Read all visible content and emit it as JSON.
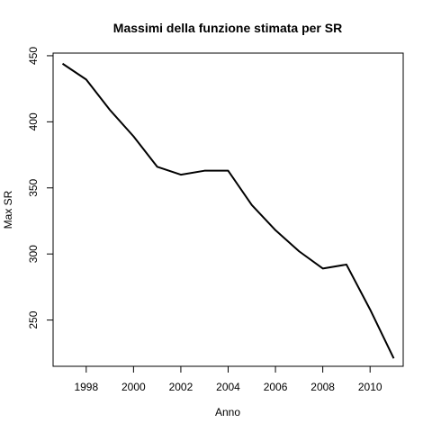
{
  "chart_data": {
    "type": "line",
    "title": "Massimi della funzione stimata per SR",
    "xlabel": "Anno",
    "ylabel": "Max SR",
    "xlim": [
      1996.6,
      2011.4
    ],
    "ylim": [
      215,
      452
    ],
    "x_ticks": [
      1998,
      2000,
      2002,
      2004,
      2006,
      2008,
      2010
    ],
    "y_ticks": [
      250,
      300,
      350,
      400,
      450
    ],
    "grid": false,
    "line_color": "#000000",
    "series": [
      {
        "x": [
          1997,
          1998,
          1999,
          2000,
          2001,
          2002,
          2003,
          2004,
          2005,
          2006,
          2007,
          2008,
          2009,
          2010,
          2011
        ],
        "y": [
          444,
          432,
          409,
          389,
          366,
          360,
          363,
          363,
          337,
          318,
          302,
          289,
          292,
          258,
          221
        ]
      }
    ]
  }
}
